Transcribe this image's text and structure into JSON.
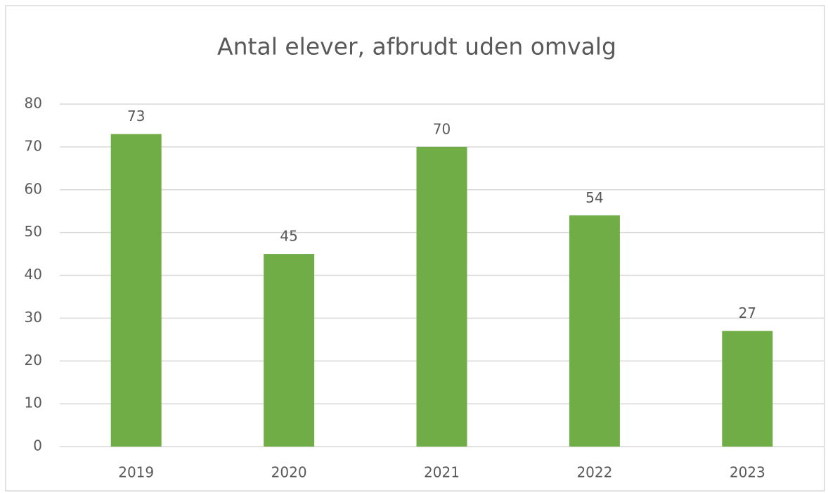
{
  "chart_data": {
    "type": "bar",
    "title": "Antal elever, afbrudt uden omvalg",
    "categories": [
      "2019",
      "2020",
      "2021",
      "2022",
      "2023"
    ],
    "values": [
      73,
      45,
      70,
      54,
      27
    ],
    "color": "#70ad47",
    "ylim": [
      0,
      80
    ],
    "yticks": [
      0,
      10,
      20,
      30,
      40,
      50,
      60,
      70,
      80
    ],
    "grid": true
  }
}
